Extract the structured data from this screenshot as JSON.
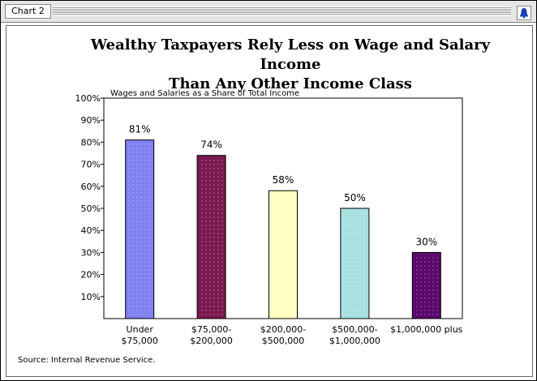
{
  "window": {
    "tab_label": "Chart 2"
  },
  "chart_data": {
    "type": "bar",
    "title_line1": "Wealthy Taxpayers Rely Less on Wage and Salary Income",
    "title_line2": "Than Any Other Income Class",
    "subtitle": "Wages and Salaries as a Share of Total  Income",
    "categories": [
      [
        "Under",
        "$75,000"
      ],
      [
        "$75,000-",
        "$200,000"
      ],
      [
        "$200,000-",
        "$500,000"
      ],
      [
        "$500,000-",
        "$1,000,000"
      ],
      [
        "$1,000,000 plus"
      ]
    ],
    "values": [
      81,
      74,
      58,
      50,
      30
    ],
    "data_labels": [
      "81%",
      "74%",
      "58%",
      "50%",
      "30%"
    ],
    "colors": [
      "#8080f0",
      "#7a1a50",
      "#ffffc0",
      "#a8e0e0",
      "#5a0a6a"
    ],
    "yticks": [
      10,
      20,
      30,
      40,
      50,
      60,
      70,
      80,
      90,
      100
    ],
    "ytick_labels": [
      "10%",
      "20%",
      "30%",
      "40%",
      "50%",
      "60%",
      "70%",
      "80%",
      "90%",
      "100%"
    ],
    "ylim": [
      0,
      100
    ],
    "source": "Source:  Internal Revenue Service."
  }
}
